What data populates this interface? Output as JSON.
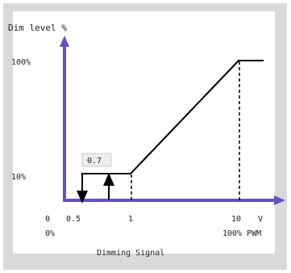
{
  "chart_data": {
    "type": "line",
    "ylabel": "Dim level %",
    "xlabel": "Dimming Signal",
    "y_ticks": [
      "100%",
      "10%"
    ],
    "x_ticks_top": [
      "0",
      "0.5",
      "1",
      "10",
      "V"
    ],
    "x_ticks_bottom": [
      "0%",
      "100% PWM"
    ],
    "annotation": "0.7",
    "series": [
      {
        "points": [
          [
            1,
            10
          ],
          [
            10,
            100
          ],
          [
            11,
            100
          ]
        ]
      }
    ],
    "hysteresis": {
      "low_threshold": 0.5,
      "high_threshold": 0.7,
      "level": 10,
      "off_arrow_at": 0.5,
      "on_arrow_at": 0.7
    },
    "colors": {
      "axis": "#6a4fbf",
      "line": "#000000",
      "background": "#d9d9d9"
    }
  }
}
